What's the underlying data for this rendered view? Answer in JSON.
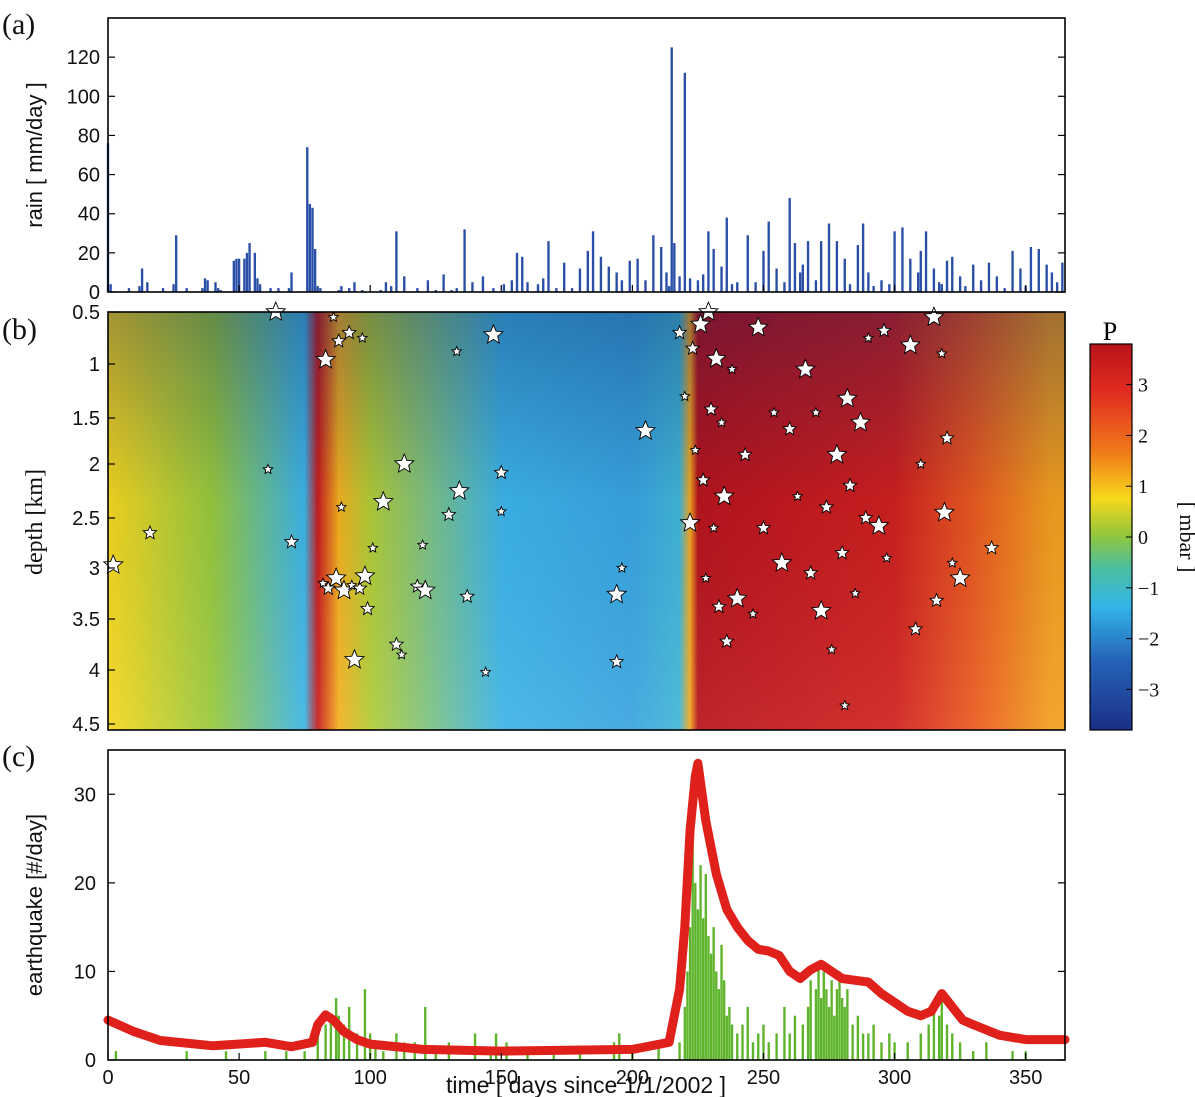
{
  "panels": {
    "a": "(a)",
    "b": "(b)",
    "c": "(c)"
  },
  "colors": {
    "rain": "#2a4fa6",
    "seismicity_rate": "#e0201b",
    "earthquake_bars": "#5db32a",
    "star_fill": "#ffffff",
    "star_stroke": "#000000"
  },
  "chart_data": [
    {
      "id": "a",
      "type": "bar",
      "title": "",
      "xlabel": "",
      "ylabel": "rain  [ mm/day ]",
      "xlim": [
        0,
        365
      ],
      "ylim": [
        0,
        140
      ],
      "yticks": [
        0,
        20,
        40,
        60,
        80,
        100,
        120
      ],
      "series": [
        {
          "days": [
            0,
            1,
            8,
            12,
            13,
            15,
            21,
            25,
            26,
            30,
            36,
            37,
            38,
            41,
            42,
            43,
            48,
            49,
            50,
            52,
            53,
            54,
            56,
            57,
            58,
            62,
            65,
            69,
            70,
            76,
            77,
            78,
            79,
            80,
            81,
            88,
            89,
            92,
            94,
            97,
            104,
            106,
            108,
            110,
            113,
            118,
            122,
            125,
            128,
            131,
            133,
            136,
            139,
            143,
            147,
            151,
            154,
            156,
            158,
            160,
            164,
            166,
            168,
            171,
            174,
            177,
            180,
            183,
            185,
            188,
            191,
            194,
            196,
            199,
            202,
            205,
            208,
            211,
            213,
            214,
            215,
            216,
            218,
            220,
            222,
            225,
            227,
            229,
            231,
            234,
            236,
            238,
            240,
            244,
            247,
            250,
            252,
            255,
            258,
            260,
            262,
            264,
            265,
            267,
            270,
            272,
            275,
            278,
            281,
            283,
            286,
            288,
            290,
            292,
            295,
            298,
            300,
            303,
            306,
            309,
            310,
            312,
            315,
            317,
            318,
            320,
            322,
            325,
            327,
            330,
            333,
            336,
            339,
            342,
            345,
            348,
            350,
            352,
            355,
            358,
            360,
            362,
            364
          ],
          "values": [
            76,
            4,
            2,
            3,
            12,
            5,
            2,
            4,
            29,
            2,
            2,
            7,
            6,
            5,
            2,
            1,
            16,
            17,
            17,
            17,
            20,
            25,
            20,
            7,
            4,
            2,
            2,
            2,
            10,
            74,
            45,
            43,
            22,
            3,
            2,
            1,
            3,
            2,
            5,
            1,
            1,
            5,
            3,
            31,
            8,
            2,
            6,
            1,
            9,
            1,
            2,
            32,
            5,
            8,
            2,
            4,
            6,
            20,
            18,
            5,
            4,
            7,
            26,
            2,
            15,
            2,
            12,
            21,
            31,
            18,
            13,
            10,
            6,
            16,
            17,
            6,
            29,
            23,
            10,
            3,
            125,
            25,
            8,
            112,
            7,
            6,
            9,
            31,
            22,
            13,
            38,
            4,
            5,
            29,
            5,
            21,
            36,
            12,
            5,
            48,
            25,
            10,
            14,
            26,
            6,
            26,
            35,
            26,
            17,
            4,
            24,
            35,
            10,
            3,
            6,
            4,
            31,
            33,
            17,
            10,
            21,
            31,
            12,
            5,
            4,
            16,
            18,
            8,
            3,
            14,
            6,
            15,
            8,
            2,
            21,
            12,
            3,
            23,
            22,
            14,
            10,
            5,
            15
          ]
        }
      ]
    },
    {
      "id": "b",
      "type": "heatmap",
      "title": "",
      "xlabel": "",
      "ylabel": "depth [km]",
      "xlim": [
        0,
        365
      ],
      "yticks": [
        0.5,
        1,
        1.5,
        2,
        2.5,
        3,
        3.5,
        4,
        4.5
      ],
      "colorbar": {
        "title": "P",
        "label": "[ mbar ]",
        "range": [
          -3.8,
          3.8
        ],
        "ticks": [
          "3",
          "2",
          "1",
          "0",
          "−1",
          "−2",
          "−3"
        ],
        "tick_values": [
          3,
          2,
          1,
          0,
          -1,
          -2,
          -3
        ]
      },
      "pressure_profile": [
        {
          "day": 0,
          "p": 1.0
        },
        {
          "day": 40,
          "p": 0.3
        },
        {
          "day": 75,
          "p": -1.2
        },
        {
          "day": 80,
          "p": 3.4
        },
        {
          "day": 88,
          "p": 1.4
        },
        {
          "day": 100,
          "p": 0.5
        },
        {
          "day": 150,
          "p": -1.2
        },
        {
          "day": 200,
          "p": -1.4
        },
        {
          "day": 218,
          "p": -1.0
        },
        {
          "day": 222,
          "p": 1.5
        },
        {
          "day": 225,
          "p": 3.7
        },
        {
          "day": 300,
          "p": 3.3
        },
        {
          "day": 330,
          "p": 2.4
        },
        {
          "day": 360,
          "p": 1.6
        }
      ],
      "earthquakes": [
        {
          "day": 2,
          "depth": 2.97
        },
        {
          "day": 16,
          "depth": 2.65
        },
        {
          "day": 61,
          "depth": 2.05
        },
        {
          "day": 64,
          "depth": 0.5
        },
        {
          "day": 70,
          "depth": 2.74
        },
        {
          "day": 82,
          "depth": 3.15
        },
        {
          "day": 83,
          "depth": 0.96
        },
        {
          "day": 84,
          "depth": 3.2
        },
        {
          "day": 86,
          "depth": 0.55
        },
        {
          "day": 87,
          "depth": 3.1
        },
        {
          "day": 88,
          "depth": 0.78
        },
        {
          "day": 89,
          "depth": 2.4
        },
        {
          "day": 90,
          "depth": 3.22
        },
        {
          "day": 92,
          "depth": 0.7
        },
        {
          "day": 93,
          "depth": 3.17
        },
        {
          "day": 94,
          "depth": 3.9
        },
        {
          "day": 96,
          "depth": 3.2
        },
        {
          "day": 97,
          "depth": 0.75
        },
        {
          "day": 98,
          "depth": 3.08
        },
        {
          "day": 99,
          "depth": 3.4
        },
        {
          "day": 101,
          "depth": 2.8
        },
        {
          "day": 105,
          "depth": 2.35
        },
        {
          "day": 110,
          "depth": 3.75
        },
        {
          "day": 112,
          "depth": 3.85
        },
        {
          "day": 113,
          "depth": 2.0
        },
        {
          "day": 118,
          "depth": 3.18
        },
        {
          "day": 120,
          "depth": 2.77
        },
        {
          "day": 121,
          "depth": 3.22
        },
        {
          "day": 130,
          "depth": 2.47
        },
        {
          "day": 133,
          "depth": 0.88
        },
        {
          "day": 134,
          "depth": 2.25
        },
        {
          "day": 137,
          "depth": 3.28
        },
        {
          "day": 144,
          "depth": 4.02
        },
        {
          "day": 147,
          "depth": 0.72
        },
        {
          "day": 150,
          "depth": 2.08
        },
        {
          "day": 150,
          "depth": 2.44
        },
        {
          "day": 194,
          "depth": 3.26
        },
        {
          "day": 194,
          "depth": 3.92
        },
        {
          "day": 196,
          "depth": 3.0
        },
        {
          "day": 205,
          "depth": 1.64
        },
        {
          "day": 218,
          "depth": 0.7
        },
        {
          "day": 220,
          "depth": 1.3
        },
        {
          "day": 222,
          "depth": 2.55
        },
        {
          "day": 223,
          "depth": 0.85
        },
        {
          "day": 224,
          "depth": 1.85
        },
        {
          "day": 226,
          "depth": 0.62
        },
        {
          "day": 227,
          "depth": 2.15
        },
        {
          "day": 228,
          "depth": 3.1
        },
        {
          "day": 229,
          "depth": 0.5
        },
        {
          "day": 230,
          "depth": 1.42
        },
        {
          "day": 231,
          "depth": 2.6
        },
        {
          "day": 232,
          "depth": 0.95
        },
        {
          "day": 233,
          "depth": 3.38
        },
        {
          "day": 234,
          "depth": 1.55
        },
        {
          "day": 235,
          "depth": 2.3
        },
        {
          "day": 236,
          "depth": 3.72
        },
        {
          "day": 238,
          "depth": 1.05
        },
        {
          "day": 240,
          "depth": 3.3
        },
        {
          "day": 243,
          "depth": 1.9
        },
        {
          "day": 246,
          "depth": 3.45
        },
        {
          "day": 248,
          "depth": 0.65
        },
        {
          "day": 250,
          "depth": 2.6
        },
        {
          "day": 254,
          "depth": 1.45
        },
        {
          "day": 257,
          "depth": 2.95
        },
        {
          "day": 260,
          "depth": 1.62
        },
        {
          "day": 263,
          "depth": 2.3
        },
        {
          "day": 266,
          "depth": 1.05
        },
        {
          "day": 268,
          "depth": 3.05
        },
        {
          "day": 270,
          "depth": 1.45
        },
        {
          "day": 272,
          "depth": 3.42
        },
        {
          "day": 274,
          "depth": 2.4
        },
        {
          "day": 276,
          "depth": 3.8
        },
        {
          "day": 278,
          "depth": 1.9
        },
        {
          "day": 280,
          "depth": 2.85
        },
        {
          "day": 281,
          "depth": 4.33
        },
        {
          "day": 282,
          "depth": 1.32
        },
        {
          "day": 283,
          "depth": 2.2
        },
        {
          "day": 285,
          "depth": 3.25
        },
        {
          "day": 287,
          "depth": 1.55
        },
        {
          "day": 289,
          "depth": 2.5
        },
        {
          "day": 290,
          "depth": 0.75
        },
        {
          "day": 294,
          "depth": 2.58
        },
        {
          "day": 296,
          "depth": 0.68
        },
        {
          "day": 297,
          "depth": 2.9
        },
        {
          "day": 306,
          "depth": 0.82
        },
        {
          "day": 308,
          "depth": 3.6
        },
        {
          "day": 310,
          "depth": 2.0
        },
        {
          "day": 315,
          "depth": 0.55
        },
        {
          "day": 316,
          "depth": 3.32
        },
        {
          "day": 318,
          "depth": 0.9
        },
        {
          "day": 319,
          "depth": 2.45
        },
        {
          "day": 320,
          "depth": 1.72
        },
        {
          "day": 322,
          "depth": 2.95
        },
        {
          "day": 325,
          "depth": 3.1
        },
        {
          "day": 337,
          "depth": 2.8
        }
      ]
    },
    {
      "id": "c",
      "type": "bar",
      "title": "",
      "xlabel": "time  [ days since 1/1/2002 ]",
      "ylabel": "earthquake [#/day]",
      "xlim": [
        0,
        365
      ],
      "ylim": [
        0,
        35
      ],
      "xticks": [
        0,
        50,
        100,
        150,
        200,
        250,
        300,
        350
      ],
      "yticks": [
        0,
        10,
        20,
        30
      ],
      "series": [
        {
          "style": "bars",
          "days": [
            3,
            30,
            45,
            60,
            68,
            75,
            80,
            83,
            85,
            87,
            88,
            90,
            92,
            95,
            98,
            100,
            102,
            105,
            110,
            113,
            117,
            121,
            125,
            130,
            140,
            146,
            148,
            152,
            160,
            170,
            180,
            193,
            195,
            200,
            210,
            218,
            220,
            221,
            222,
            223,
            224,
            225,
            226,
            227,
            228,
            229,
            230,
            231,
            232,
            233,
            234,
            235,
            236,
            237,
            238,
            240,
            242,
            244,
            246,
            248,
            250,
            252,
            255,
            258,
            260,
            262,
            265,
            267,
            268,
            270,
            271,
            272,
            273,
            274,
            275,
            276,
            277,
            278,
            279,
            280,
            281,
            282,
            284,
            286,
            288,
            290,
            292,
            295,
            298,
            300,
            305,
            310,
            313,
            315,
            317,
            318,
            320,
            322,
            325,
            330,
            335,
            345,
            350
          ],
          "values": [
            1,
            1,
            1,
            1,
            1,
            1,
            3,
            4,
            5,
            7,
            5,
            4,
            6,
            3,
            8,
            3,
            2,
            1,
            3,
            2,
            2,
            6,
            1,
            2,
            3,
            1,
            3,
            2,
            1,
            1,
            1,
            2,
            3,
            1,
            2,
            2,
            6,
            10,
            15,
            25,
            20,
            17,
            22,
            16,
            21,
            14,
            12,
            15,
            10,
            8,
            13,
            9,
            5,
            6,
            4,
            3,
            4,
            6,
            2,
            3,
            4,
            2,
            3,
            6,
            3,
            5,
            4,
            6,
            9,
            8,
            11,
            7,
            10,
            8,
            6,
            9,
            5,
            8,
            10,
            7,
            6,
            8,
            4,
            5,
            3,
            3,
            4,
            2,
            3,
            2,
            2,
            3,
            4,
            6,
            5,
            7,
            4,
            3,
            2,
            1,
            2,
            1,
            1
          ]
        },
        {
          "style": "line",
          "x": [
            0,
            10,
            20,
            40,
            60,
            70,
            78,
            80,
            83,
            86,
            90,
            95,
            100,
            120,
            150,
            200,
            214,
            216,
            218,
            220,
            222,
            224,
            225,
            228,
            232,
            236,
            240,
            244,
            248,
            252,
            256,
            260,
            264,
            268,
            272,
            276,
            280,
            285,
            290,
            295,
            300,
            305,
            310,
            314,
            318,
            322,
            326,
            330,
            340,
            350,
            365
          ],
          "y": [
            4.5,
            3.2,
            2.2,
            1.6,
            2.0,
            1.5,
            2.0,
            4.0,
            5.1,
            4.5,
            3.2,
            2.3,
            1.8,
            1.2,
            1.0,
            1.2,
            2.0,
            5.0,
            8.0,
            15.0,
            26.0,
            32.0,
            33.5,
            27.0,
            21.0,
            17.0,
            15.0,
            13.5,
            12.5,
            12.3,
            11.8,
            10.0,
            9.2,
            10.2,
            10.8,
            10.0,
            9.2,
            9.0,
            8.8,
            7.5,
            6.5,
            5.5,
            5.0,
            5.5,
            7.5,
            6.0,
            4.5,
            4.0,
            2.8,
            2.3,
            2.3
          ]
        }
      ]
    }
  ]
}
